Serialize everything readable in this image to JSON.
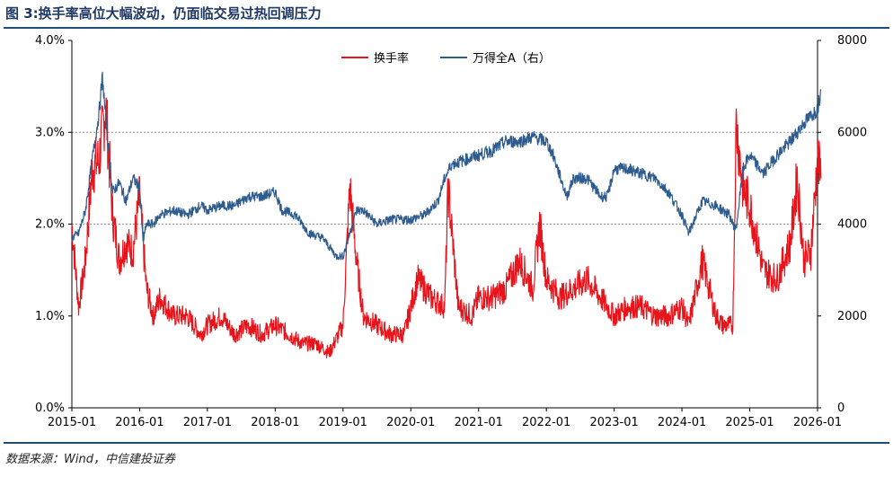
{
  "title": "图 3:换手率高位大幅波动，仍面临交易过热回调压力",
  "source": "数据来源：Wind，中信建投证券",
  "chart_data": {
    "type": "line",
    "title": "图 3:换手率高位大幅波动，仍面临交易过热回调压力",
    "x_ticks": [
      "2015-01",
      "2016-01",
      "2017-01",
      "2018-01",
      "2019-01",
      "2020-01",
      "2021-01",
      "2022-01",
      "2023-01",
      "2024-01",
      "2025-01",
      "2026-01"
    ],
    "y_left": {
      "label": "换手率",
      "ticks": [
        "0.0%",
        "1.0%",
        "2.0%",
        "3.0%",
        "4.0%"
      ],
      "range": [
        0,
        4
      ]
    },
    "y_right": {
      "label": "万得全A",
      "ticks": [
        "0",
        "2000",
        "4000",
        "6000",
        "8000"
      ],
      "range": [
        0,
        8000
      ]
    },
    "grid": "dotted at 2.0% and 3.0%",
    "legend_position": "top-center",
    "series": [
      {
        "name": "换手率",
        "axis": "left",
        "color": "#e8141c",
        "x": [
          2015.0,
          2015.1,
          2015.2,
          2015.3,
          2015.4,
          2015.5,
          2015.6,
          2015.7,
          2015.8,
          2015.9,
          2016.0,
          2016.1,
          2016.2,
          2016.3,
          2016.5,
          2016.7,
          2016.9,
          2017.0,
          2017.2,
          2017.4,
          2017.6,
          2017.8,
          2018.0,
          2018.2,
          2018.4,
          2018.6,
          2018.8,
          2019.0,
          2019.1,
          2019.2,
          2019.3,
          2019.5,
          2019.7,
          2019.9,
          2020.0,
          2020.1,
          2020.3,
          2020.5,
          2020.55,
          2020.7,
          2020.9,
          2021.0,
          2021.2,
          2021.4,
          2021.6,
          2021.8,
          2021.9,
          2022.0,
          2022.2,
          2022.4,
          2022.6,
          2022.8,
          2023.0,
          2023.2,
          2023.4,
          2023.6,
          2023.8,
          2024.0,
          2024.1,
          2024.3,
          2024.5,
          2024.6,
          2024.7,
          2024.75,
          2024.8,
          2024.9,
          2025.0,
          2025.2,
          2025.4,
          2025.6,
          2025.7,
          2025.8,
          2025.9,
          2026.0,
          2026.05
        ],
        "values": [
          2.0,
          1.1,
          1.6,
          2.6,
          2.7,
          3.3,
          2.1,
          1.6,
          1.8,
          1.7,
          2.3,
          1.3,
          1.0,
          1.2,
          1.0,
          1.0,
          0.8,
          0.9,
          1.0,
          0.8,
          0.9,
          0.8,
          0.9,
          0.8,
          0.7,
          0.7,
          0.6,
          0.9,
          2.4,
          1.6,
          1.0,
          0.9,
          0.8,
          0.8,
          1.1,
          1.4,
          1.2,
          1.1,
          2.4,
          1.1,
          1.0,
          1.2,
          1.2,
          1.3,
          1.6,
          1.3,
          2.0,
          1.4,
          1.2,
          1.3,
          1.4,
          1.2,
          1.0,
          1.1,
          1.1,
          1.0,
          1.0,
          1.1,
          0.9,
          1.6,
          1.0,
          0.9,
          0.9,
          0.9,
          3.1,
          2.4,
          2.2,
          1.5,
          1.4,
          1.8,
          2.5,
          1.6,
          1.7,
          2.7,
          2.5
        ]
      },
      {
        "name": "万得全A（右）",
        "axis": "right",
        "color": "#2e5c8e",
        "x": [
          2015.0,
          2015.1,
          2015.2,
          2015.3,
          2015.4,
          2015.45,
          2015.5,
          2015.6,
          2015.7,
          2015.8,
          2015.9,
          2016.0,
          2016.05,
          2016.1,
          2016.2,
          2016.3,
          2016.5,
          2016.7,
          2016.9,
          2017.0,
          2017.2,
          2017.4,
          2017.6,
          2017.8,
          2018.0,
          2018.1,
          2018.3,
          2018.5,
          2018.7,
          2018.9,
          2019.0,
          2019.2,
          2019.3,
          2019.5,
          2019.7,
          2019.9,
          2020.0,
          2020.2,
          2020.4,
          2020.5,
          2020.6,
          2020.8,
          2021.0,
          2021.2,
          2021.4,
          2021.6,
          2021.8,
          2022.0,
          2022.1,
          2022.3,
          2022.4,
          2022.6,
          2022.8,
          2022.9,
          2023.0,
          2023.2,
          2023.4,
          2023.6,
          2023.8,
          2024.0,
          2024.1,
          2024.3,
          2024.5,
          2024.7,
          2024.75,
          2024.8,
          2024.9,
          2025.0,
          2025.2,
          2025.4,
          2025.6,
          2025.8,
          2026.0,
          2026.05
        ],
        "values": [
          3700,
          3800,
          4300,
          5400,
          6400,
          7200,
          6300,
          4700,
          4900,
          4500,
          5000,
          4800,
          3600,
          4000,
          4000,
          4200,
          4300,
          4200,
          4400,
          4300,
          4400,
          4400,
          4600,
          4600,
          4700,
          4300,
          4200,
          3800,
          3700,
          3300,
          3300,
          4300,
          4300,
          4000,
          4100,
          4100,
          4100,
          4200,
          4500,
          5000,
          5300,
          5400,
          5500,
          5600,
          5800,
          5800,
          5900,
          5800,
          5500,
          4600,
          5000,
          5000,
          4600,
          4600,
          5200,
          5200,
          5100,
          5000,
          4700,
          4200,
          3800,
          4500,
          4400,
          4200,
          4000,
          3900,
          5200,
          5500,
          5100,
          5500,
          5800,
          6200,
          6500,
          6900
        ]
      }
    ]
  }
}
